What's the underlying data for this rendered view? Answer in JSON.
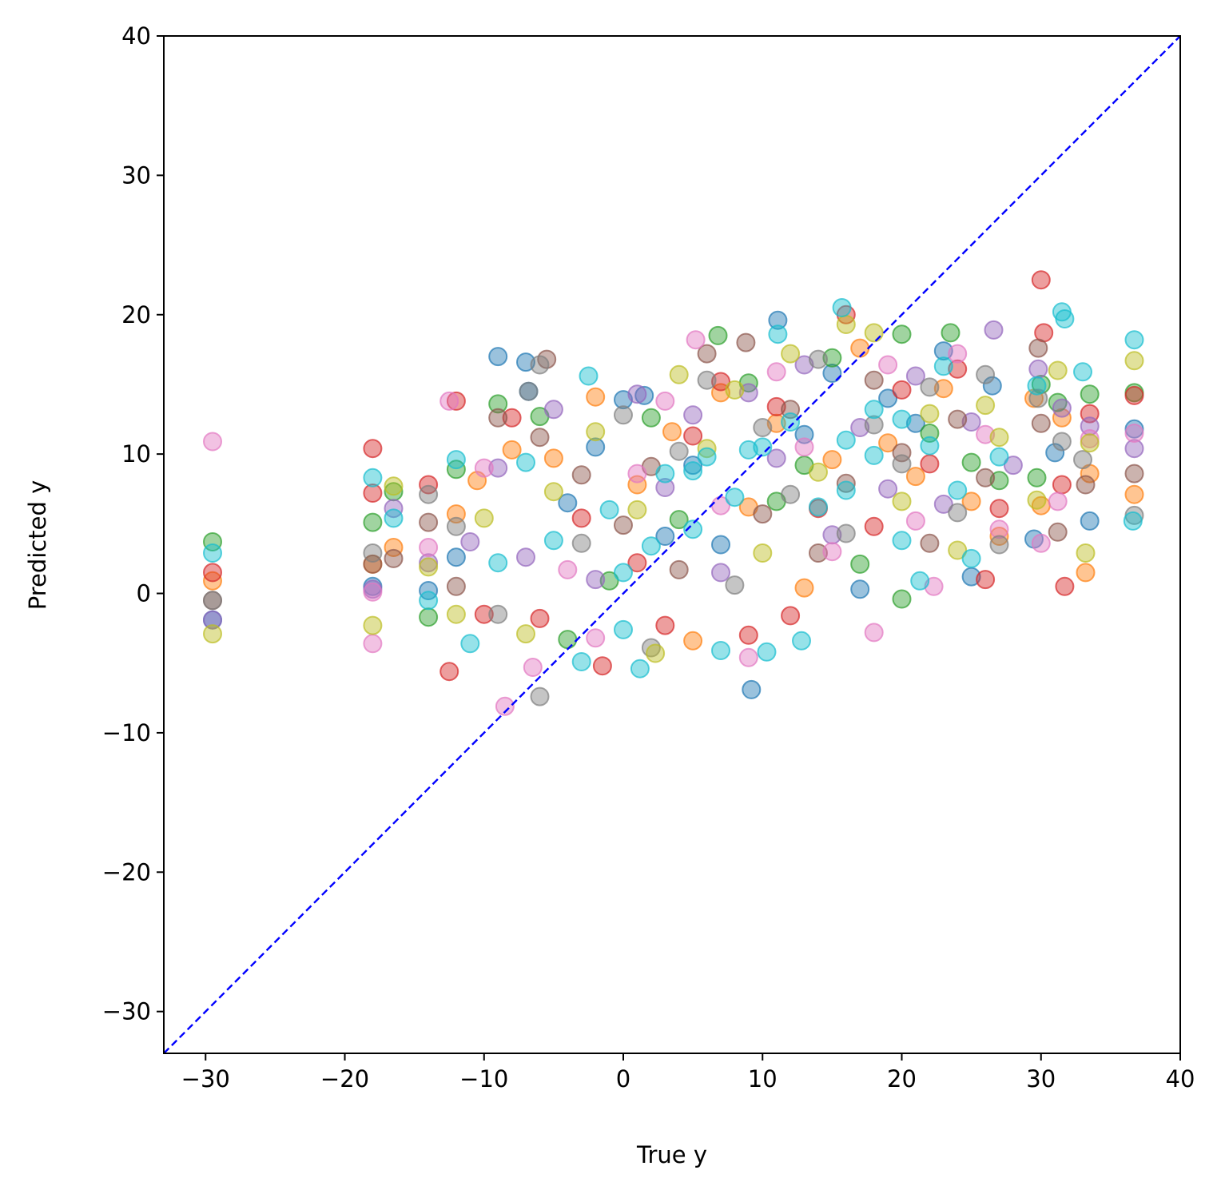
{
  "chart_data": {
    "type": "scatter",
    "title": "",
    "xlabel": "True y",
    "ylabel": "Predicted y",
    "xlim": [
      -33,
      40
    ],
    "ylim": [
      -33,
      40
    ],
    "xticks": [
      -30,
      -20,
      -10,
      0,
      10,
      20,
      30,
      40
    ],
    "yticks": [
      -30,
      -20,
      -10,
      0,
      10,
      20,
      30,
      40
    ],
    "xtick_labels": [
      "−30",
      "−20",
      "−10",
      "0",
      "10",
      "20",
      "30",
      "40"
    ],
    "ytick_labels": [
      "−30",
      "−20",
      "−10",
      "0",
      "10",
      "20",
      "30",
      "40"
    ],
    "grid": false,
    "legend": "none",
    "marker_opacity": 0.45,
    "identity_line": {
      "x": [
        -33,
        40
      ],
      "y": [
        -33,
        40
      ],
      "color": "#0000ff",
      "style": "dashed"
    },
    "colors": [
      "#1f77b4",
      "#ff7f0e",
      "#2ca02c",
      "#d62728",
      "#9467bd",
      "#8c564b",
      "#e377c2",
      "#7f7f7f",
      "#bcbd22",
      "#17becf"
    ],
    "series": [
      {
        "color": "#1f77b4",
        "points": [
          [
            -29.5,
            -1.9
          ],
          [
            -18,
            0.5
          ],
          [
            -14,
            0.2
          ],
          [
            -12,
            2.6
          ],
          [
            -9,
            17.0
          ],
          [
            -7,
            16.6
          ],
          [
            -6.8,
            14.5
          ],
          [
            -4,
            6.5
          ],
          [
            -2,
            10.5
          ],
          [
            0,
            13.9
          ],
          [
            1.5,
            14.2
          ],
          [
            3,
            4.1
          ],
          [
            5,
            9.2
          ],
          [
            7,
            3.5
          ],
          [
            9.2,
            -6.9
          ],
          [
            11.1,
            19.6
          ],
          [
            13,
            11.4
          ],
          [
            15,
            15.8
          ],
          [
            17,
            0.3
          ],
          [
            19,
            14.0
          ],
          [
            21,
            12.2
          ],
          [
            23,
            17.4
          ],
          [
            25,
            1.2
          ],
          [
            26.5,
            14.9
          ],
          [
            29.5,
            3.9
          ],
          [
            31,
            10.1
          ],
          [
            33.5,
            5.2
          ],
          [
            36.7,
            11.8
          ]
        ]
      },
      {
        "color": "#ff7f0e",
        "points": [
          [
            -29.5,
            0.9
          ],
          [
            -18,
            2.1
          ],
          [
            -16.5,
            3.3
          ],
          [
            -12,
            5.7
          ],
          [
            -10.5,
            8.1
          ],
          [
            -8,
            10.3
          ],
          [
            -5,
            9.7
          ],
          [
            -2,
            14.1
          ],
          [
            1,
            7.8
          ],
          [
            3.5,
            11.6
          ],
          [
            5,
            -3.4
          ],
          [
            7,
            14.4
          ],
          [
            9,
            6.2
          ],
          [
            11,
            12.2
          ],
          [
            13,
            0.4
          ],
          [
            15,
            9.6
          ],
          [
            17,
            17.6
          ],
          [
            19,
            10.8
          ],
          [
            21,
            8.4
          ],
          [
            23,
            14.7
          ],
          [
            25,
            6.6
          ],
          [
            27,
            4.1
          ],
          [
            29.5,
            14.0
          ],
          [
            30,
            6.3
          ],
          [
            31.5,
            12.6
          ],
          [
            33.2,
            1.5
          ],
          [
            33.5,
            8.6
          ],
          [
            36.7,
            7.1
          ]
        ]
      },
      {
        "color": "#2ca02c",
        "points": [
          [
            -29.5,
            3.7
          ],
          [
            -18,
            5.1
          ],
          [
            -16.5,
            7.3
          ],
          [
            -14,
            -1.7
          ],
          [
            -12,
            8.9
          ],
          [
            -9,
            13.6
          ],
          [
            -6,
            12.7
          ],
          [
            -4,
            -3.3
          ],
          [
            -1,
            0.9
          ],
          [
            2,
            12.6
          ],
          [
            4,
            5.3
          ],
          [
            6.8,
            18.5
          ],
          [
            9,
            15.1
          ],
          [
            11,
            6.6
          ],
          [
            13,
            9.2
          ],
          [
            15,
            16.9
          ],
          [
            17,
            2.1
          ],
          [
            20,
            18.6
          ],
          [
            20,
            -0.4
          ],
          [
            22,
            11.5
          ],
          [
            23.5,
            18.7
          ],
          [
            25,
            9.4
          ],
          [
            27,
            8.1
          ],
          [
            29.7,
            8.3
          ],
          [
            30,
            15.0
          ],
          [
            31.2,
            13.7
          ],
          [
            33.5,
            14.3
          ],
          [
            36.7,
            14.4
          ]
        ]
      },
      {
        "color": "#d62728",
        "points": [
          [
            -29.5,
            1.5
          ],
          [
            -18,
            10.4
          ],
          [
            -18,
            7.2
          ],
          [
            -14,
            7.8
          ],
          [
            -12.5,
            -5.6
          ],
          [
            -12,
            13.8
          ],
          [
            -10,
            -1.5
          ],
          [
            -8,
            12.6
          ],
          [
            -6,
            -1.8
          ],
          [
            -3,
            5.4
          ],
          [
            -1.5,
            -5.2
          ],
          [
            1,
            2.2
          ],
          [
            3,
            -2.3
          ],
          [
            5,
            11.3
          ],
          [
            7,
            15.2
          ],
          [
            9,
            -3.0
          ],
          [
            11,
            13.4
          ],
          [
            12,
            -1.6
          ],
          [
            14,
            6.1
          ],
          [
            16,
            20.0
          ],
          [
            18,
            4.8
          ],
          [
            20,
            14.6
          ],
          [
            22,
            9.3
          ],
          [
            24,
            16.1
          ],
          [
            26,
            1.0
          ],
          [
            27,
            6.1
          ],
          [
            30,
            22.5
          ],
          [
            30.2,
            18.7
          ],
          [
            31.5,
            7.8
          ],
          [
            31.7,
            0.5
          ],
          [
            33.5,
            12.9
          ],
          [
            36.7,
            14.2
          ]
        ]
      },
      {
        "color": "#9467bd",
        "points": [
          [
            -29.5,
            -1.9
          ],
          [
            -18,
            0.3
          ],
          [
            -16.5,
            6.1
          ],
          [
            -14,
            2.2
          ],
          [
            -11,
            3.7
          ],
          [
            -9,
            9.0
          ],
          [
            -7,
            2.6
          ],
          [
            -5,
            13.2
          ],
          [
            -2,
            1.0
          ],
          [
            1,
            14.3
          ],
          [
            3,
            7.6
          ],
          [
            5,
            12.8
          ],
          [
            7,
            1.5
          ],
          [
            9,
            14.4
          ],
          [
            11,
            9.7
          ],
          [
            13,
            16.4
          ],
          [
            15,
            4.2
          ],
          [
            17,
            11.9
          ],
          [
            19,
            7.5
          ],
          [
            21,
            15.6
          ],
          [
            23,
            6.4
          ],
          [
            25,
            12.3
          ],
          [
            26.6,
            18.9
          ],
          [
            28,
            9.2
          ],
          [
            29.8,
            16.1
          ],
          [
            31.5,
            13.3
          ],
          [
            33.5,
            12.0
          ],
          [
            36.7,
            10.4
          ]
        ]
      },
      {
        "color": "#8c564b",
        "points": [
          [
            -29.5,
            -0.5
          ],
          [
            -18,
            2.1
          ],
          [
            -16.5,
            2.5
          ],
          [
            -14,
            5.1
          ],
          [
            -12,
            0.5
          ],
          [
            -9,
            12.6
          ],
          [
            -6,
            11.2
          ],
          [
            -5.5,
            16.8
          ],
          [
            -3,
            8.5
          ],
          [
            0,
            4.9
          ],
          [
            2,
            9.1
          ],
          [
            4,
            1.7
          ],
          [
            6,
            17.2
          ],
          [
            8.8,
            18.0
          ],
          [
            10,
            5.7
          ],
          [
            12,
            13.2
          ],
          [
            14,
            2.9
          ],
          [
            16,
            7.9
          ],
          [
            18,
            15.3
          ],
          [
            20,
            10.1
          ],
          [
            22,
            3.6
          ],
          [
            24,
            12.5
          ],
          [
            26,
            8.3
          ],
          [
            29.8,
            17.6
          ],
          [
            30,
            12.2
          ],
          [
            31.2,
            4.4
          ],
          [
            33.2,
            7.8
          ],
          [
            36.7,
            8.6
          ]
        ]
      },
      {
        "color": "#e377c2",
        "points": [
          [
            -29.5,
            10.9
          ],
          [
            -18,
            -3.6
          ],
          [
            -18,
            0.1
          ],
          [
            -14,
            3.3
          ],
          [
            -12.5,
            13.8
          ],
          [
            -10,
            9.0
          ],
          [
            -8.5,
            -8.1
          ],
          [
            -6.5,
            -5.3
          ],
          [
            -4,
            1.7
          ],
          [
            -2,
            -3.2
          ],
          [
            1,
            8.6
          ],
          [
            3,
            13.8
          ],
          [
            5.2,
            18.2
          ],
          [
            7,
            6.3
          ],
          [
            9,
            -4.6
          ],
          [
            11,
            15.9
          ],
          [
            13,
            10.5
          ],
          [
            15,
            3.0
          ],
          [
            18,
            -2.8
          ],
          [
            19,
            16.4
          ],
          [
            21,
            5.2
          ],
          [
            22.3,
            0.5
          ],
          [
            24,
            17.2
          ],
          [
            26,
            11.4
          ],
          [
            27,
            4.6
          ],
          [
            30,
            3.6
          ],
          [
            31.2,
            6.6
          ],
          [
            33.5,
            11.1
          ],
          [
            36.7,
            11.5
          ]
        ]
      },
      {
        "color": "#7f7f7f",
        "points": [
          [
            -29.5,
            -0.5
          ],
          [
            -18,
            2.9
          ],
          [
            -14,
            7.1
          ],
          [
            -12,
            4.8
          ],
          [
            -9,
            -1.5
          ],
          [
            -6.8,
            14.5
          ],
          [
            -6,
            -7.4
          ],
          [
            -6,
            16.4
          ],
          [
            -3,
            3.6
          ],
          [
            0,
            12.8
          ],
          [
            2,
            -3.9
          ],
          [
            4,
            10.2
          ],
          [
            6,
            15.3
          ],
          [
            8,
            0.6
          ],
          [
            10,
            11.9
          ],
          [
            12,
            7.1
          ],
          [
            14,
            16.8
          ],
          [
            16,
            4.3
          ],
          [
            18,
            12.1
          ],
          [
            20,
            9.3
          ],
          [
            22,
            14.8
          ],
          [
            24,
            5.8
          ],
          [
            26,
            15.7
          ],
          [
            27,
            3.5
          ],
          [
            29.8,
            14.0
          ],
          [
            31.5,
            10.9
          ],
          [
            33,
            9.6
          ],
          [
            36.7,
            5.6
          ]
        ]
      },
      {
        "color": "#bcbd22",
        "points": [
          [
            -29.5,
            -2.9
          ],
          [
            -18,
            -2.3
          ],
          [
            -16.5,
            7.7
          ],
          [
            -14,
            1.9
          ],
          [
            -12,
            -1.5
          ],
          [
            -10,
            5.4
          ],
          [
            -7,
            -2.9
          ],
          [
            -5,
            7.3
          ],
          [
            -2,
            11.6
          ],
          [
            1,
            6.0
          ],
          [
            2.3,
            -4.3
          ],
          [
            4,
            15.7
          ],
          [
            6,
            10.4
          ],
          [
            8,
            14.6
          ],
          [
            10,
            2.9
          ],
          [
            12,
            17.2
          ],
          [
            14,
            8.7
          ],
          [
            16,
            19.3
          ],
          [
            18,
            18.7
          ],
          [
            20,
            6.6
          ],
          [
            22,
            12.9
          ],
          [
            24,
            3.1
          ],
          [
            26,
            13.5
          ],
          [
            27,
            11.2
          ],
          [
            29.7,
            6.7
          ],
          [
            31.2,
            16.0
          ],
          [
            33.2,
            2.9
          ],
          [
            33.5,
            10.8
          ],
          [
            36.7,
            16.7
          ]
        ]
      },
      {
        "color": "#17becf",
        "points": [
          [
            -29.5,
            2.9
          ],
          [
            -18,
            8.3
          ],
          [
            -16.5,
            5.4
          ],
          [
            -14,
            -0.5
          ],
          [
            -12,
            9.6
          ],
          [
            -11,
            -3.6
          ],
          [
            -9,
            2.2
          ],
          [
            -7,
            9.4
          ],
          [
            -3,
            -4.9
          ],
          [
            -2.5,
            15.6
          ],
          [
            0,
            -2.6
          ],
          [
            1.2,
            -5.4
          ],
          [
            3,
            8.6
          ],
          [
            5,
            4.6
          ],
          [
            7,
            -4.1
          ],
          [
            9,
            10.3
          ],
          [
            10.3,
            -4.2
          ],
          [
            11.1,
            18.6
          ],
          [
            12.8,
            -3.4
          ],
          [
            15.7,
            20.5
          ],
          [
            16,
            7.4
          ],
          [
            18,
            13.2
          ],
          [
            20,
            3.8
          ],
          [
            21.3,
            0.9
          ],
          [
            23,
            16.3
          ],
          [
            25,
            2.5
          ],
          [
            27,
            9.8
          ],
          [
            29.7,
            14.9
          ],
          [
            31.5,
            20.2
          ],
          [
            31.7,
            19.7
          ],
          [
            33,
            15.9
          ],
          [
            36.7,
            18.2
          ],
          [
            36.6,
            5.2
          ],
          [
            5,
            8.8
          ],
          [
            10,
            10.5
          ],
          [
            14,
            6.2
          ],
          [
            18,
            9.9
          ],
          [
            -1,
            6.0
          ],
          [
            2,
            3.4
          ],
          [
            8,
            6.9
          ],
          [
            12,
            12.3
          ],
          [
            16,
            11.0
          ],
          [
            20,
            12.5
          ],
          [
            24,
            7.4
          ],
          [
            -5,
            3.8
          ],
          [
            0,
            1.5
          ],
          [
            6,
            9.8
          ],
          [
            22,
            10.6
          ]
        ]
      }
    ]
  }
}
